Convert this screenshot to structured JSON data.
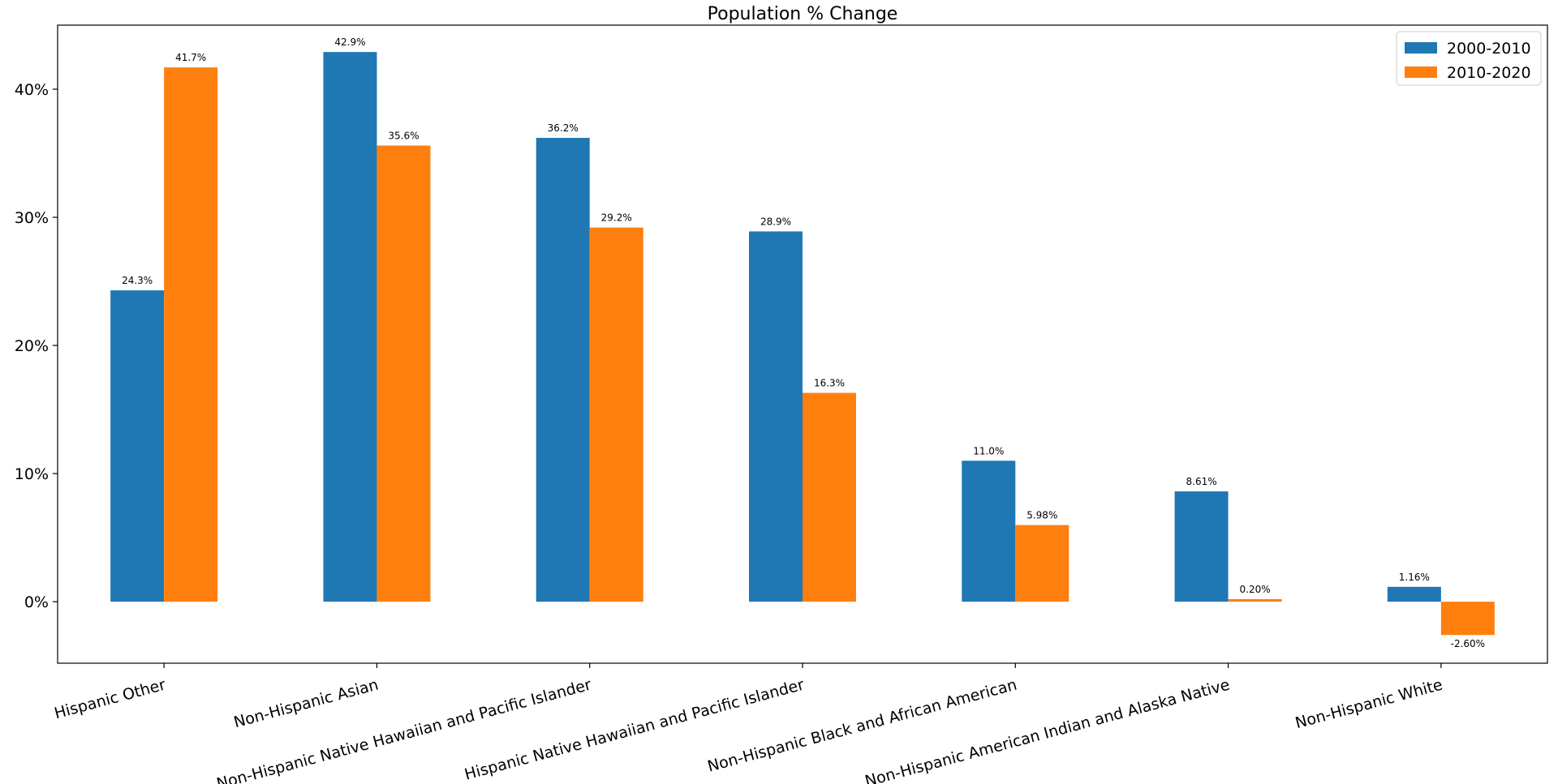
{
  "chart_data": {
    "type": "bar",
    "title": "Population % Change",
    "xlabel": "",
    "ylabel": "",
    "categories": [
      "Hispanic Other",
      "Non-Hispanic Asian",
      "Non-Hispanic Native Hawaiian and Pacific Islander",
      "Hispanic Native Hawaiian and Pacific Islander",
      "Non-Hispanic Black and African American",
      "Non-Hispanic American Indian and Alaska Native",
      "Non-Hispanic White"
    ],
    "series": [
      {
        "name": "2000-2010",
        "color": "#1f77b4",
        "values": [
          24.3,
          42.9,
          36.2,
          28.9,
          11.0,
          8.61,
          1.16
        ],
        "labels": [
          "24.3%",
          "42.9%",
          "36.2%",
          "28.9%",
          "11.0%",
          "8.61%",
          "1.16%"
        ]
      },
      {
        "name": "2010-2020",
        "color": "#ff7f0e",
        "values": [
          41.7,
          35.6,
          29.2,
          16.3,
          5.98,
          0.2,
          -2.6
        ],
        "labels": [
          "41.7%",
          "35.6%",
          "29.2%",
          "16.3%",
          "5.98%",
          "0.20%",
          "-2.60%"
        ]
      }
    ],
    "ylim": [
      -4.8,
      45.0
    ],
    "yticks": [
      0,
      10,
      20,
      30,
      40
    ],
    "ytick_labels": [
      "0%",
      "10%",
      "20%",
      "30%",
      "40%"
    ],
    "grid": false,
    "legend_position": "top-right"
  }
}
